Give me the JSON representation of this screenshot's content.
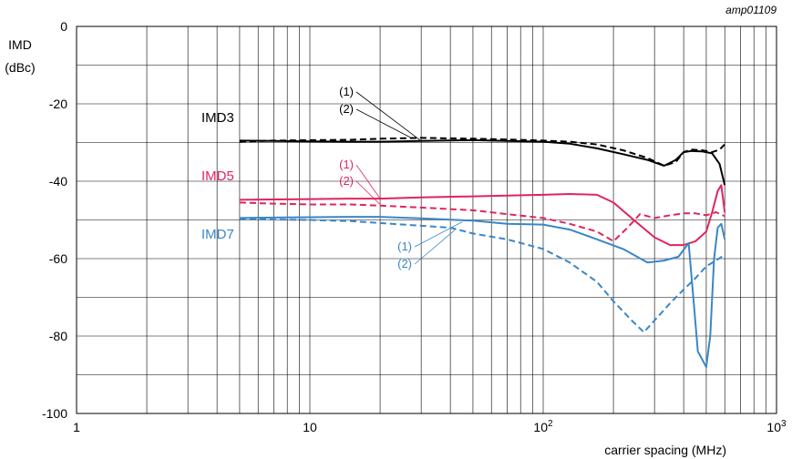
{
  "figure_id": "amp01109",
  "colors": {
    "imd3": "#000000",
    "imd5": "#e0245e",
    "imd7": "#3a86c8",
    "grid": "#000000"
  },
  "chart_data": {
    "type": "line",
    "title": "",
    "ylabel_line1": "IMD",
    "ylabel_line2": "(dBc)",
    "xlabel": "carrier spacing (MHz)",
    "xscale": "log",
    "xlim": [
      1,
      1000
    ],
    "ylim": [
      -100,
      0
    ],
    "grid": true,
    "yticks": [
      0,
      -20,
      -40,
      -60,
      -80,
      -100
    ],
    "ytick_labels": [
      "0",
      "-20",
      "-40",
      "-60",
      "-80",
      "-100"
    ],
    "xticks": [
      {
        "value": 1,
        "base": "1",
        "exp": ""
      },
      {
        "value": 10,
        "base": "10",
        "exp": ""
      },
      {
        "value": 100,
        "base": "10",
        "exp": "2"
      },
      {
        "value": 1000,
        "base": "10",
        "exp": "3"
      }
    ],
    "series_labels": [
      {
        "text": "IMD3",
        "group": "imd3"
      },
      {
        "text": "IMD5",
        "group": "imd5"
      },
      {
        "text": "IMD7",
        "group": "imd7"
      }
    ],
    "callouts": [
      {
        "group": "imd3",
        "text1": "(1)",
        "text2": "(2)",
        "target1": [
          30,
          -29.6
        ],
        "target2": [
          27,
          -28.7
        ]
      },
      {
        "group": "imd5",
        "text1": "(1)",
        "text2": "(2)",
        "target1": [
          20,
          -44.5
        ],
        "target2": [
          20,
          -46
        ]
      },
      {
        "group": "imd7",
        "text1": "(1)",
        "text2": "(2)",
        "target1": [
          45,
          -50.5
        ],
        "target2": [
          42,
          -52.5
        ]
      }
    ],
    "series": [
      {
        "group": "imd3",
        "curve": "(1)",
        "dash": false,
        "x": [
          5,
          7,
          10,
          15,
          20,
          30,
          50,
          70,
          100,
          130,
          170,
          220,
          280,
          330,
          370,
          400,
          430,
          480,
          530,
          570,
          600
        ],
        "y": [
          -29.5,
          -29.6,
          -29.7,
          -29.8,
          -29.8,
          -29.6,
          -29.4,
          -29.6,
          -29.8,
          -30.3,
          -31.5,
          -33,
          -34.5,
          -36,
          -34.5,
          -32.5,
          -32.2,
          -32.3,
          -32.8,
          -35.5,
          -41
        ]
      },
      {
        "group": "imd3",
        "curve": "(2)",
        "dash": true,
        "x": [
          5,
          7,
          10,
          15,
          20,
          30,
          50,
          70,
          100,
          130,
          170,
          220,
          280,
          330,
          370,
          400,
          430,
          480,
          530,
          570,
          600
        ],
        "y": [
          -29.8,
          -29.5,
          -29.4,
          -29.3,
          -29,
          -28.8,
          -29,
          -29.2,
          -29.5,
          -29.8,
          -30.5,
          -32,
          -34,
          -36,
          -35,
          -32.5,
          -31.8,
          -32,
          -32.5,
          -31.8,
          -30.5
        ]
      },
      {
        "group": "imd5",
        "curve": "(1)",
        "dash": false,
        "x": [
          5,
          7,
          10,
          15,
          20,
          30,
          50,
          70,
          100,
          130,
          170,
          200,
          250,
          300,
          350,
          400,
          450,
          500,
          530,
          560,
          580,
          600
        ],
        "y": [
          -44.8,
          -44.7,
          -44.6,
          -44.5,
          -44.5,
          -44.2,
          -43.9,
          -43.7,
          -43.5,
          -43.3,
          -43.5,
          -45.5,
          -50.5,
          -54.5,
          -56.5,
          -56.5,
          -55.5,
          -53,
          -48,
          -42.5,
          -41,
          -48
        ]
      },
      {
        "group": "imd5",
        "curve": "(2)",
        "dash": true,
        "x": [
          5,
          7,
          10,
          15,
          20,
          30,
          50,
          70,
          100,
          130,
          170,
          200,
          230,
          260,
          300,
          350,
          400,
          450,
          500,
          550,
          600
        ],
        "y": [
          -45.5,
          -45.8,
          -46,
          -46,
          -46.3,
          -46.8,
          -47.5,
          -48.5,
          -49.5,
          -51,
          -53,
          -55.5,
          -52,
          -48.5,
          -49.5,
          -48.8,
          -48.3,
          -48.3,
          -48.8,
          -48,
          -49
        ]
      },
      {
        "group": "imd7",
        "curve": "(1)",
        "dash": false,
        "x": [
          5,
          7,
          10,
          15,
          20,
          30,
          50,
          70,
          100,
          130,
          170,
          220,
          280,
          330,
          380,
          420,
          440,
          460,
          480,
          500,
          520,
          540,
          560,
          580,
          600
        ],
        "y": [
          -49.5,
          -49.4,
          -49.3,
          -49.2,
          -49.2,
          -49.6,
          -50.2,
          -51,
          -51.2,
          -52.5,
          -55,
          -57.5,
          -61,
          -60.5,
          -59.5,
          -56,
          -70,
          -84,
          -86,
          -88,
          -80,
          -60,
          -52,
          -51,
          -55
        ]
      },
      {
        "group": "imd7",
        "curve": "(2)",
        "dash": true,
        "x": [
          5,
          7,
          10,
          15,
          20,
          30,
          40,
          50,
          70,
          100,
          130,
          170,
          200,
          240,
          270,
          300,
          350,
          400,
          450,
          500,
          550,
          600
        ],
        "y": [
          -49.8,
          -49.9,
          -50,
          -50.3,
          -50.8,
          -51.5,
          -52,
          -53.5,
          -55,
          -57.5,
          -61,
          -66,
          -71,
          -76,
          -79,
          -76,
          -71.5,
          -68,
          -65,
          -62,
          -60.5,
          -59
        ]
      }
    ]
  }
}
